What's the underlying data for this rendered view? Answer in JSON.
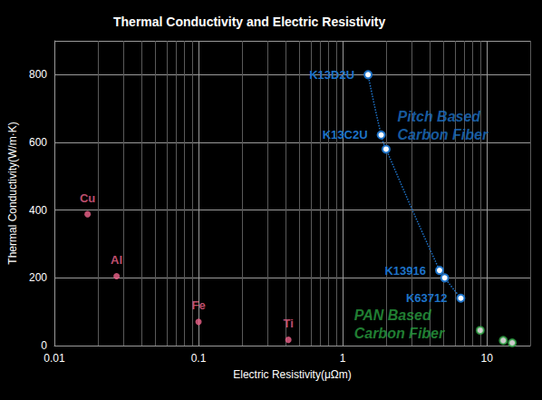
{
  "chart_data": {
    "type": "scatter",
    "title": "Thermal Conductivity and Electric Resistivity",
    "x_label": "Electric Resistivity(μΩm)",
    "y_label": "Thermal Conductivity(W/m·K)",
    "log": "x",
    "grid": true,
    "xlim": [
      0.01,
      20
    ],
    "xticks": [
      0.01,
      0.1,
      1,
      10
    ],
    "ylim": [
      0,
      900
    ],
    "yticks": [
      0,
      200,
      400,
      600,
      800
    ],
    "series": [
      {
        "color": "#f0648c",
        "marker": "dot",
        "x": [
          0.017,
          0.027,
          0.1,
          0.42
        ],
        "values": [
          388,
          205,
          70,
          17
        ],
        "labels": [
          "Cu",
          "Al",
          "Fe",
          "Ti"
        ]
      },
      {
        "type": "line",
        "line_style": "dotted",
        "color": "#1e73c8",
        "marker": "ring",
        "x": [
          1.5,
          1.85,
          2.0,
          4.7,
          5.1,
          6.6
        ],
        "values": [
          800,
          622,
          580,
          222,
          200,
          140
        ],
        "labels": [
          "K13D2U",
          "K13C2U",
          null,
          "K13916",
          null,
          "K63712"
        ]
      },
      {
        "color": "#2aa040",
        "marker": "ring",
        "x": [
          9,
          13,
          15
        ],
        "values": [
          45,
          15,
          8
        ]
      }
    ],
    "annotations": [
      {
        "text": "Pitch Based\nCarbon Fiber",
        "x": 2.4,
        "y": 650,
        "color": "#1e73c8"
      },
      {
        "text": "PAN Based\nCarbon Fiber",
        "x": 1.2,
        "y": 64,
        "color": "#2aa040"
      }
    ]
  }
}
